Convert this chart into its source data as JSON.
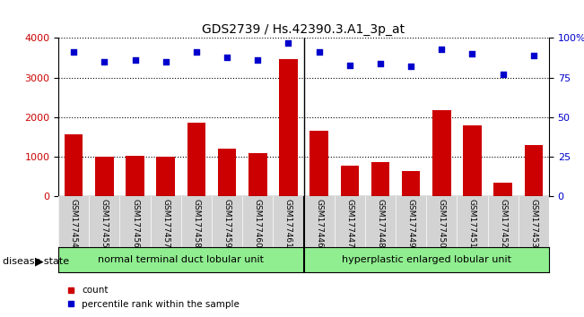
{
  "title": "GDS2739 / Hs.42390.3.A1_3p_at",
  "samples": [
    "GSM177454",
    "GSM177455",
    "GSM177456",
    "GSM177457",
    "GSM177458",
    "GSM177459",
    "GSM177460",
    "GSM177461",
    "GSM177446",
    "GSM177447",
    "GSM177448",
    "GSM177449",
    "GSM177450",
    "GSM177451",
    "GSM177452",
    "GSM177453"
  ],
  "counts": [
    1570,
    1010,
    1020,
    1000,
    1860,
    1210,
    1090,
    3460,
    1650,
    770,
    870,
    650,
    2180,
    1790,
    340,
    1290
  ],
  "percentiles": [
    91,
    85,
    86,
    85,
    91,
    88,
    86,
    97,
    91,
    83,
    84,
    82,
    93,
    90,
    77,
    89
  ],
  "bar_color": "#cc0000",
  "dot_color": "#0000cc",
  "group1_label": "normal terminal duct lobular unit",
  "group2_label": "hyperplastic enlarged lobular unit",
  "group1_count": 8,
  "group2_count": 8,
  "group_color": "#90ee90",
  "disease_state_label": "disease state",
  "ylim_left": [
    0,
    4000
  ],
  "ylim_right": [
    0,
    100
  ],
  "yticks_left": [
    0,
    1000,
    2000,
    3000,
    4000
  ],
  "yticks_right": [
    0,
    25,
    50,
    75,
    100
  ],
  "ytick_labels_right": [
    "0",
    "25",
    "50",
    "75",
    "100%"
  ],
  "legend_count_label": "count",
  "legend_percentile_label": "percentile rank within the sample",
  "tick_area_color": "#d3d3d3"
}
